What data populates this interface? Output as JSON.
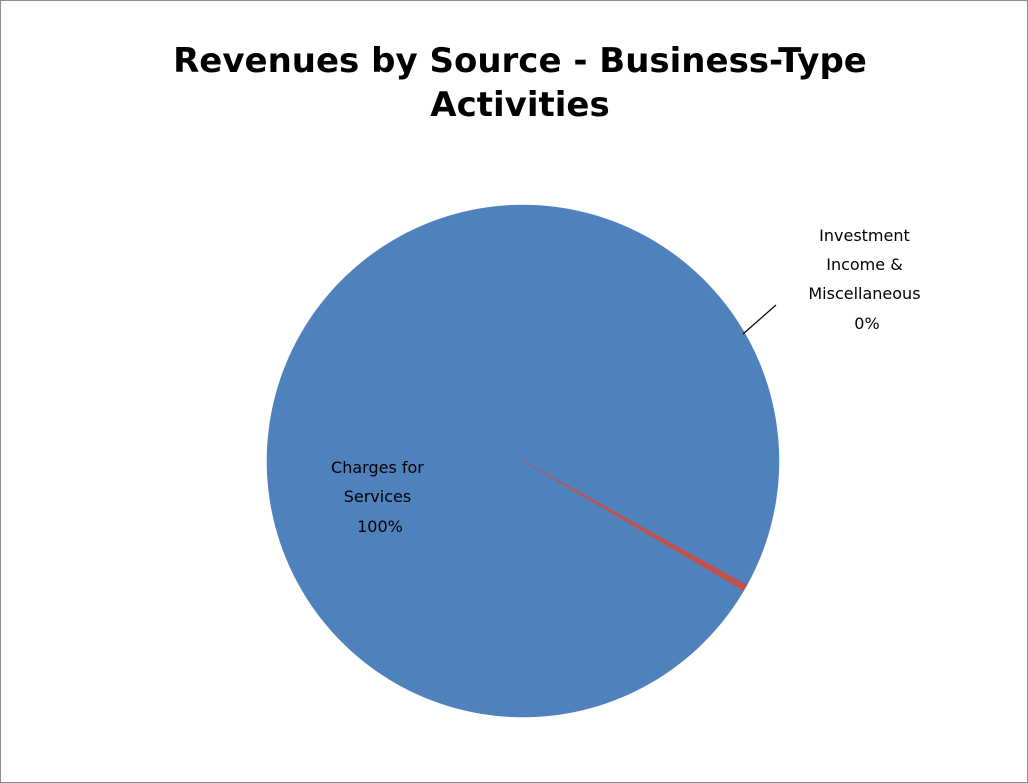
{
  "chart_data": {
    "type": "pie",
    "title": "Revenues by Source - Business-Type Activities",
    "slices": [
      {
        "label": "Investment Income & Miscellaneous",
        "label_lines": [
          "Investment",
          "Income &",
          "Miscellaneous",
          "0%"
        ],
        "percent_label": "0%",
        "value": 0.4,
        "color": "#c0504d"
      },
      {
        "label": "Charges for Services",
        "label_lines": [
          "Charges for",
          "Services",
          "100%"
        ],
        "percent_label": "100%",
        "value": 99.6,
        "color": "#4f81bd"
      }
    ],
    "legend": "none"
  }
}
